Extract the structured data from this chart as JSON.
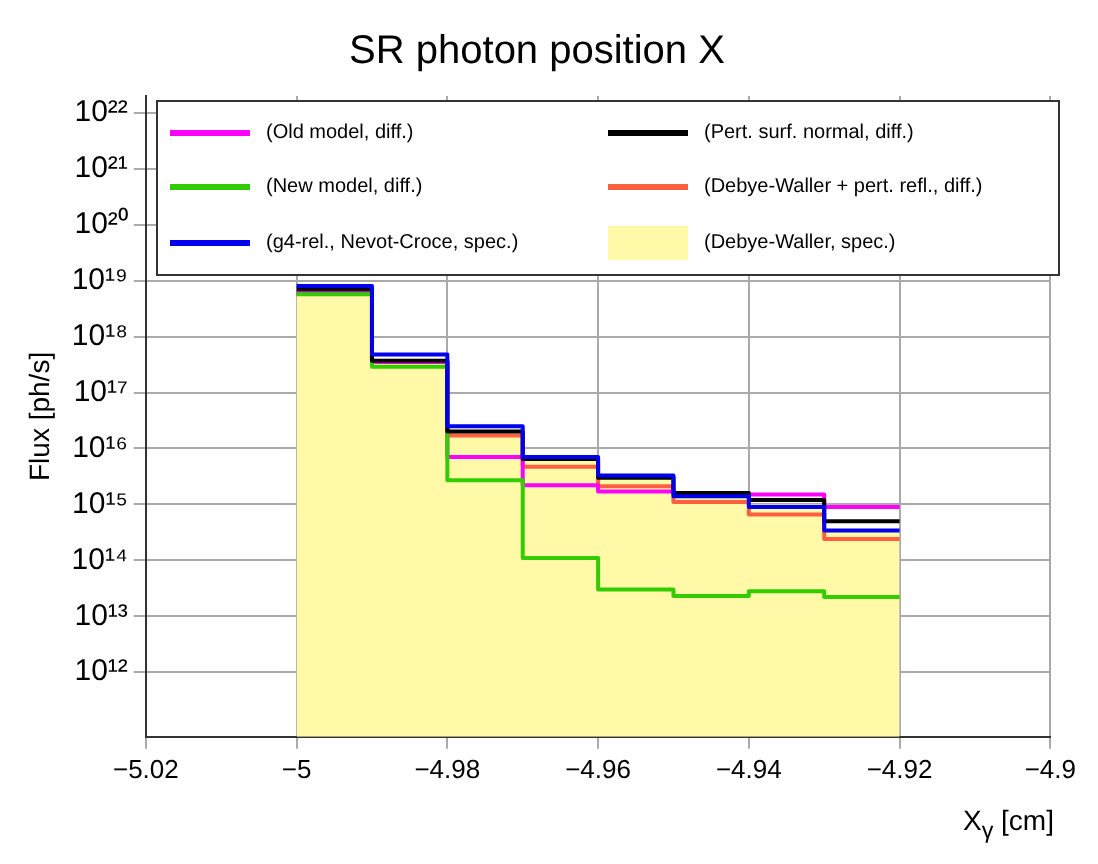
{
  "chart_data": {
    "type": "step",
    "title": "SR photon position X",
    "xlabel": "X$_{γ}$ [cm]",
    "ylabel": "Flux [ph/s]",
    "log": "y",
    "grid": true,
    "legend": "top",
    "x": [
      -5,
      -4.99,
      -4.98,
      -4.97,
      -4.96,
      -4.95,
      -4.94,
      -4.93,
      -4.92
    ],
    "xlim": [
      -5.02,
      -4.9
    ],
    "xticks": [
      {
        "value": -5.02,
        "label": "−5.02"
      },
      {
        "value": -5,
        "label": "−5"
      },
      {
        "value": -4.98,
        "label": "−4.98"
      },
      {
        "value": -4.96,
        "label": "−4.96"
      },
      {
        "value": -4.94,
        "label": "−4.94"
      },
      {
        "value": -4.92,
        "label": "−4.92"
      },
      {
        "value": -4.9,
        "label": "−4.9"
      }
    ],
    "ylim": [
      70000000000.0,
      2e+22
    ],
    "yticks": [
      {
        "value": 1000000000000.0,
        "label": "10¹²"
      },
      {
        "value": 10000000000000.0,
        "label": "10¹³"
      },
      {
        "value": 100000000000000.0,
        "label": "10¹⁴"
      },
      {
        "value": 1000000000000000.0,
        "label": "10¹⁵"
      },
      {
        "value": 1e+16,
        "label": "10¹⁶"
      },
      {
        "value": 1e+17,
        "label": "10¹⁷"
      },
      {
        "value": 1e+18,
        "label": "10¹⁸"
      },
      {
        "value": 1e+19,
        "label": "10¹⁹"
      },
      {
        "value": 1e+20,
        "label": "10²⁰"
      },
      {
        "value": 1e+21,
        "label": "10²¹"
      },
      {
        "value": 1e+22,
        "label": "10²²"
      }
    ],
    "series": [
      {
        "name": "(Debye-Waller, spec.)",
        "type": "area",
        "color": "#fff9a8",
        "values": [
          5.3e+18,
          3.3e+17,
          2e+16,
          6200000000000000.0,
          3000000000000000.0,
          1400000000000000.0,
          1000000000000000.0,
          350000000000000.0,
          350000000000000.0
        ]
      },
      {
        "name": "(Debye-Waller + pert. refl., diff.)",
        "color": "#ff6040",
        "values": [
          6e+18,
          3.5e+17,
          1.7e+16,
          4700000000000000.0,
          2100000000000000.0,
          1100000000000000.0,
          660000000000000.0,
          240000000000000.0,
          240000000000000.0
        ]
      },
      {
        "name": "(Old model, diff.)",
        "color": "#ff00ff",
        "values": [
          6e+18,
          3.5e+17,
          7000000000000000.0,
          2200000000000000.0,
          1700000000000000.0,
          1600000000000000.0,
          1500000000000000.0,
          900000000000000.0,
          900000000000000.0
        ]
      },
      {
        "name": "(New model, diff.)",
        "color": "#33cc00",
        "values": [
          5.7e+18,
          2.9e+17,
          2700000000000000.0,
          110000000000000.0,
          30000000000000.0,
          23000000000000.0,
          28000000000000.0,
          22000000000000.0,
          22000000000000.0
        ]
      },
      {
        "name": "(Pert. surf. normal, diff.)",
        "color": "#000000",
        "values": [
          7e+18,
          3.7e+17,
          2e+16,
          6500000000000000.0,
          3000000000000000.0,
          1600000000000000.0,
          1200000000000000.0,
          500000000000000.0,
          500000000000000.0
        ]
      },
      {
        "name": "(g4-rel., Nevot-Croce, spec.)",
        "color": "#0000ee",
        "values": [
          8e+18,
          4.8e+17,
          2.5e+16,
          7000000000000000.0,
          3300000000000000.0,
          1400000000000000.0,
          900000000000000.0,
          340000000000000.0,
          340000000000000.0
        ]
      }
    ]
  }
}
